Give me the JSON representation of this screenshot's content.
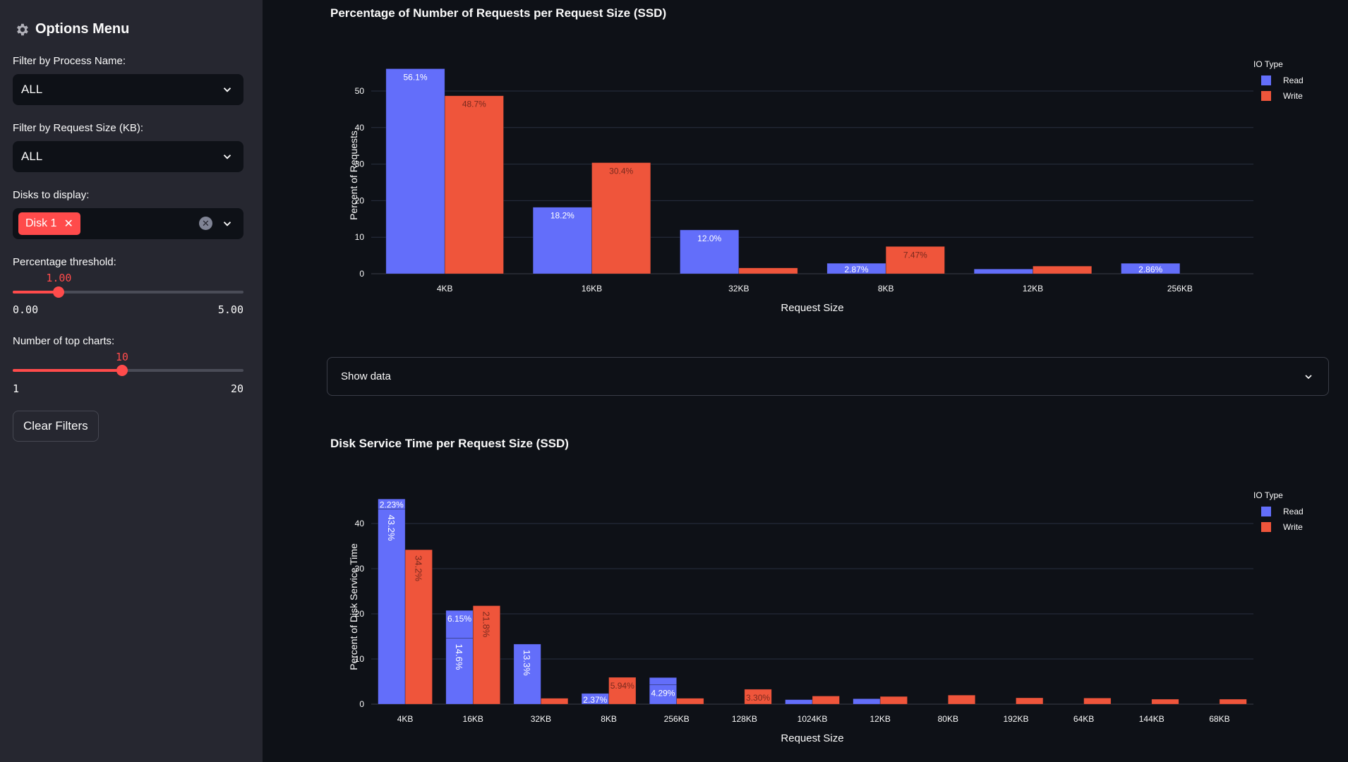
{
  "sidebar": {
    "title": "Options Menu",
    "title_icon": "gear-icon",
    "process_filter": {
      "label": "Filter by Process Name:",
      "value": "ALL"
    },
    "size_filter": {
      "label": "Filter by Request Size (KB):",
      "value": "ALL"
    },
    "disks": {
      "label": "Disks to display:",
      "selected": [
        "Disk 1"
      ]
    },
    "threshold": {
      "label": "Percentage threshold:",
      "value": "1.00",
      "min": "0.00",
      "max": "5.00",
      "fraction": 0.2
    },
    "top_charts": {
      "label": "Number of top charts:",
      "value": "10",
      "min": "1",
      "max": "20",
      "fraction": 0.4737
    },
    "clear_button": "Clear Filters"
  },
  "expander": {
    "label": "Show data"
  },
  "colors": {
    "read": "#636efa",
    "write": "#ef553b",
    "accent": "#ff4b4b"
  },
  "chart_data": [
    {
      "type": "bar",
      "title": "Percentage of Number of Requests per Request Size (SSD)",
      "xlabel": "Request Size",
      "ylabel": "Percent of Requests",
      "ylim": [
        0,
        57
      ],
      "yticks": [
        0,
        10,
        20,
        30,
        40,
        50
      ],
      "grid": true,
      "legend": {
        "title": "IO Type",
        "placement": "top-right",
        "entries": [
          "Read",
          "Write"
        ]
      },
      "categories": [
        "4KB",
        "16KB",
        "32KB",
        "8KB",
        "12KB",
        "256KB"
      ],
      "series": [
        {
          "name": "Read",
          "segments": [
            [
              56.1
            ],
            [
              18.2
            ],
            [
              12.0
            ],
            [
              2.87
            ],
            [
              1.3
            ],
            [
              2.86
            ]
          ],
          "labels": [
            [
              "56.1%"
            ],
            [
              "18.2%"
            ],
            [
              "12.0%"
            ],
            [
              "2.87%"
            ],
            [
              ""
            ],
            [
              "2.86%"
            ]
          ]
        },
        {
          "name": "Write",
          "segments": [
            [
              48.7
            ],
            [
              30.4
            ],
            [
              1.6
            ],
            [
              7.47
            ],
            [
              2.1
            ],
            [
              0
            ]
          ],
          "labels": [
            [
              "48.7%"
            ],
            [
              "30.4%"
            ],
            [
              ""
            ],
            [
              "7.47%"
            ],
            [
              ""
            ],
            [
              ""
            ]
          ]
        }
      ]
    },
    {
      "type": "bar",
      "title": "Disk Service Time per Request Size (SSD)",
      "xlabel": "Request Size",
      "ylabel": "Percent of Disk Service Time",
      "ylim": [
        0,
        46
      ],
      "yticks": [
        0,
        10,
        20,
        30,
        40
      ],
      "grid": true,
      "legend": {
        "title": "IO Type",
        "placement": "top-right",
        "entries": [
          "Read",
          "Write"
        ]
      },
      "categories": [
        "4KB",
        "16KB",
        "32KB",
        "8KB",
        "256KB",
        "128KB",
        "1024KB",
        "12KB",
        "80KB",
        "192KB",
        "64KB",
        "144KB",
        "68KB"
      ],
      "series": [
        {
          "name": "Read",
          "segments": [
            [
              43.2,
              2.23
            ],
            [
              14.6,
              6.15
            ],
            [
              13.3
            ],
            [
              2.37
            ],
            [
              4.29,
              1.6
            ],
            [
              0
            ],
            [
              1.0
            ],
            [
              1.2
            ],
            [
              0
            ],
            [
              0
            ],
            [
              0
            ],
            [
              0
            ],
            [
              0
            ]
          ],
          "labels": [
            [
              "43.2%",
              "2.23%"
            ],
            [
              "14.6%",
              "6.15%"
            ],
            [
              "13.3%"
            ],
            [
              "2.37%"
            ],
            [
              "4.29%",
              ""
            ],
            [
              ""
            ],
            [
              ""
            ],
            [
              ""
            ],
            [
              ""
            ],
            [
              ""
            ],
            [
              ""
            ],
            [
              ""
            ],
            [
              ""
            ]
          ]
        },
        {
          "name": "Write",
          "segments": [
            [
              34.2
            ],
            [
              21.8
            ],
            [
              1.3
            ],
            [
              5.94
            ],
            [
              1.3
            ],
            [
              3.3
            ],
            [
              1.8
            ],
            [
              1.7
            ],
            [
              2.0
            ],
            [
              1.4
            ],
            [
              1.35
            ],
            [
              1.1
            ],
            [
              1.1
            ]
          ],
          "labels": [
            [
              "34.2%"
            ],
            [
              "21.8%"
            ],
            [
              ""
            ],
            [
              "5.94%"
            ],
            [
              ""
            ],
            [
              "3.30%"
            ],
            [
              ""
            ],
            [
              ""
            ],
            [
              ""
            ],
            [
              ""
            ],
            [
              ""
            ],
            [
              ""
            ],
            [
              ""
            ]
          ]
        }
      ]
    }
  ]
}
